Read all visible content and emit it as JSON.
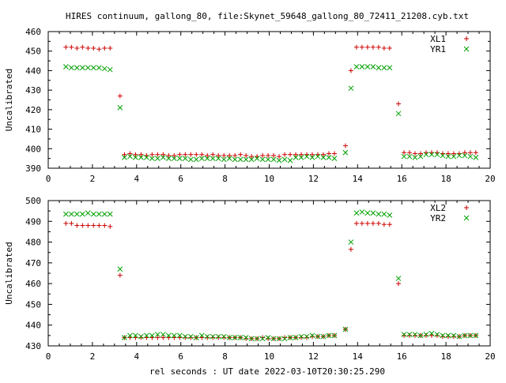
{
  "page": {
    "title": "HIRES continuum, gallong_80, file:Skynet_59648_gallong_80_72411_21208.cyb.txt",
    "xlabel": "rel seconds : UT date 2022-03-10T20:30:25.290"
  },
  "chart_data": [
    {
      "type": "scatter",
      "ylabel": "Uncalibrated",
      "xlim": [
        0,
        20
      ],
      "ylim": [
        390,
        460
      ],
      "xticks": [
        "0",
        "2",
        "4",
        "6",
        "8",
        "10",
        "12",
        "14",
        "16",
        "18",
        "20"
      ],
      "yticks": [
        "390",
        "400",
        "410",
        "420",
        "430",
        "440",
        "450",
        "460"
      ],
      "legend_position": "top-right",
      "series": [
        {
          "name": "XL1",
          "marker": "plus",
          "color": "#cc0000",
          "x": [
            0.8,
            1.05,
            1.3,
            1.55,
            1.8,
            2.05,
            2.3,
            2.55,
            2.8,
            3.25,
            3.45,
            3.7,
            3.95,
            4.2,
            4.45,
            4.7,
            4.95,
            5.2,
            5.45,
            5.7,
            5.95,
            6.2,
            6.45,
            6.7,
            6.95,
            7.2,
            7.45,
            7.7,
            7.95,
            8.2,
            8.45,
            8.7,
            8.95,
            9.2,
            9.45,
            9.7,
            9.95,
            10.2,
            10.45,
            10.7,
            10.95,
            11.2,
            11.45,
            11.7,
            11.95,
            12.2,
            12.45,
            12.7,
            12.95,
            13.45,
            13.7,
            13.95,
            14.2,
            14.45,
            14.7,
            14.95,
            15.2,
            15.45,
            15.85,
            16.1,
            16.35,
            16.6,
            16.85,
            17.1,
            17.35,
            17.6,
            17.85,
            18.1,
            18.35,
            18.6,
            18.85,
            19.1,
            19.35
          ],
          "y": [
            452,
            452,
            451.5,
            452,
            451.5,
            451.5,
            451,
            451.5,
            451.5,
            427,
            397,
            397.5,
            397,
            397,
            396.5,
            397,
            397,
            397,
            396.5,
            396.5,
            397,
            397,
            397,
            397,
            397,
            396.5,
            397,
            396.5,
            396.5,
            396.5,
            396.5,
            397,
            396.5,
            396,
            396,
            396.5,
            396.5,
            396.5,
            396,
            397,
            397,
            397,
            397,
            397,
            397,
            397,
            397,
            397.5,
            397.5,
            401.5,
            440,
            452,
            452,
            452,
            452,
            452,
            451.5,
            451.5,
            423,
            398,
            398,
            397.5,
            397.5,
            398,
            398,
            398,
            397.5,
            397.5,
            397.5,
            397.5,
            398,
            398,
            398
          ]
        },
        {
          "name": "YR1",
          "marker": "cross",
          "color": "#00a000",
          "x": [
            0.8,
            1.05,
            1.3,
            1.55,
            1.8,
            2.05,
            2.3,
            2.55,
            2.8,
            3.25,
            3.45,
            3.7,
            3.95,
            4.2,
            4.45,
            4.7,
            4.95,
            5.2,
            5.45,
            5.7,
            5.95,
            6.2,
            6.45,
            6.7,
            6.95,
            7.2,
            7.45,
            7.7,
            7.95,
            8.2,
            8.45,
            8.7,
            8.95,
            9.2,
            9.45,
            9.7,
            9.95,
            10.2,
            10.45,
            10.7,
            10.95,
            11.2,
            11.45,
            11.7,
            11.95,
            12.2,
            12.45,
            12.7,
            12.95,
            13.45,
            13.7,
            13.95,
            14.2,
            14.45,
            14.7,
            14.95,
            15.2,
            15.45,
            15.85,
            16.1,
            16.35,
            16.6,
            16.85,
            17.1,
            17.35,
            17.6,
            17.85,
            18.1,
            18.35,
            18.6,
            18.85,
            19.1,
            19.35
          ],
          "y": [
            442,
            441.5,
            441.5,
            441.5,
            441.5,
            441.5,
            441.5,
            441,
            440.5,
            421,
            395.5,
            396,
            395.5,
            395.5,
            395.5,
            395,
            395,
            395.5,
            395,
            395,
            395,
            395,
            394.5,
            394.5,
            395,
            395,
            395,
            395,
            394.5,
            395,
            394.5,
            394.5,
            394.5,
            394.5,
            395,
            394.5,
            394.5,
            394.5,
            394,
            394.5,
            394,
            395.5,
            395.5,
            396,
            395.5,
            396,
            395.5,
            395.5,
            395,
            398,
            431,
            442,
            442,
            442,
            442,
            441.5,
            441.5,
            441.5,
            418,
            396,
            396,
            395.5,
            396,
            397,
            397,
            397,
            396.5,
            396,
            396,
            396.5,
            396.5,
            396,
            395.5
          ]
        }
      ]
    },
    {
      "type": "scatter",
      "ylabel": "Uncalibrated",
      "xlim": [
        0,
        20
      ],
      "ylim": [
        430,
        500
      ],
      "xticks": [
        "0",
        "2",
        "4",
        "6",
        "8",
        "10",
        "12",
        "14",
        "16",
        "18",
        "20"
      ],
      "yticks": [
        "430",
        "440",
        "450",
        "460",
        "470",
        "480",
        "490",
        "500"
      ],
      "legend_position": "top-right",
      "series": [
        {
          "name": "XL2",
          "marker": "plus",
          "color": "#cc0000",
          "x": [
            0.8,
            1.05,
            1.3,
            1.55,
            1.8,
            2.05,
            2.3,
            2.55,
            2.8,
            3.25,
            3.45,
            3.7,
            3.95,
            4.2,
            4.45,
            4.7,
            4.95,
            5.2,
            5.45,
            5.7,
            5.95,
            6.2,
            6.45,
            6.7,
            6.95,
            7.2,
            7.45,
            7.7,
            7.95,
            8.2,
            8.45,
            8.7,
            8.95,
            9.2,
            9.45,
            9.7,
            9.95,
            10.2,
            10.45,
            10.7,
            10.95,
            11.2,
            11.45,
            11.7,
            11.95,
            12.2,
            12.45,
            12.7,
            12.95,
            13.45,
            13.7,
            13.95,
            14.2,
            14.45,
            14.7,
            14.95,
            15.2,
            15.45,
            15.85,
            16.1,
            16.35,
            16.6,
            16.85,
            17.1,
            17.35,
            17.6,
            17.85,
            18.1,
            18.35,
            18.6,
            18.85,
            19.1,
            19.35
          ],
          "y": [
            489,
            489,
            488,
            488,
            488,
            488,
            488,
            488,
            487.5,
            464,
            434,
            434,
            434,
            434,
            434,
            434,
            434,
            434,
            434,
            434,
            434,
            434,
            434,
            434,
            434,
            434,
            434,
            434,
            434,
            434,
            434,
            434,
            433.5,
            433.5,
            433.5,
            434,
            433.5,
            433.5,
            433.5,
            434,
            434,
            434,
            434,
            434,
            434.5,
            434.5,
            434.5,
            435,
            435,
            438,
            476.5,
            489,
            489,
            489,
            489,
            489,
            488.5,
            488.5,
            460,
            435,
            435,
            435,
            435,
            435,
            435,
            435,
            434.5,
            434.5,
            434.5,
            434.5,
            435,
            435,
            435
          ]
        },
        {
          "name": "YR2",
          "marker": "cross",
          "color": "#00a000",
          "x": [
            0.8,
            1.05,
            1.3,
            1.55,
            1.8,
            2.05,
            2.3,
            2.55,
            2.8,
            3.25,
            3.45,
            3.7,
            3.95,
            4.2,
            4.45,
            4.7,
            4.95,
            5.2,
            5.45,
            5.7,
            5.95,
            6.2,
            6.45,
            6.7,
            6.95,
            7.2,
            7.45,
            7.7,
            7.95,
            8.2,
            8.45,
            8.7,
            8.95,
            9.2,
            9.45,
            9.7,
            9.95,
            10.2,
            10.45,
            10.7,
            10.95,
            11.2,
            11.45,
            11.7,
            11.95,
            12.2,
            12.45,
            12.7,
            12.95,
            13.45,
            13.7,
            13.95,
            14.2,
            14.45,
            14.7,
            14.95,
            15.2,
            15.45,
            15.85,
            16.1,
            16.35,
            16.6,
            16.85,
            17.1,
            17.35,
            17.6,
            17.85,
            18.1,
            18.35,
            18.6,
            18.85,
            19.1,
            19.35
          ],
          "y": [
            493.5,
            493.5,
            493.5,
            493.5,
            494,
            493.5,
            493.5,
            493.5,
            493.5,
            467,
            434,
            435,
            435,
            434.5,
            435,
            435,
            435.5,
            435.5,
            435,
            435,
            435,
            434.5,
            434.5,
            434,
            435,
            434.5,
            434.5,
            434.5,
            434.5,
            434,
            434,
            434,
            434,
            433.5,
            433.5,
            433.5,
            434,
            433.5,
            433.5,
            433.5,
            434,
            434,
            434.5,
            434.5,
            435,
            434.5,
            434.5,
            435,
            435,
            438,
            480,
            494,
            494.5,
            494,
            494,
            493.5,
            493.5,
            493,
            462.5,
            435.5,
            435.5,
            435.5,
            435,
            435.5,
            436,
            435.5,
            435,
            435,
            435,
            434.5,
            435,
            435,
            435
          ]
        }
      ]
    }
  ]
}
